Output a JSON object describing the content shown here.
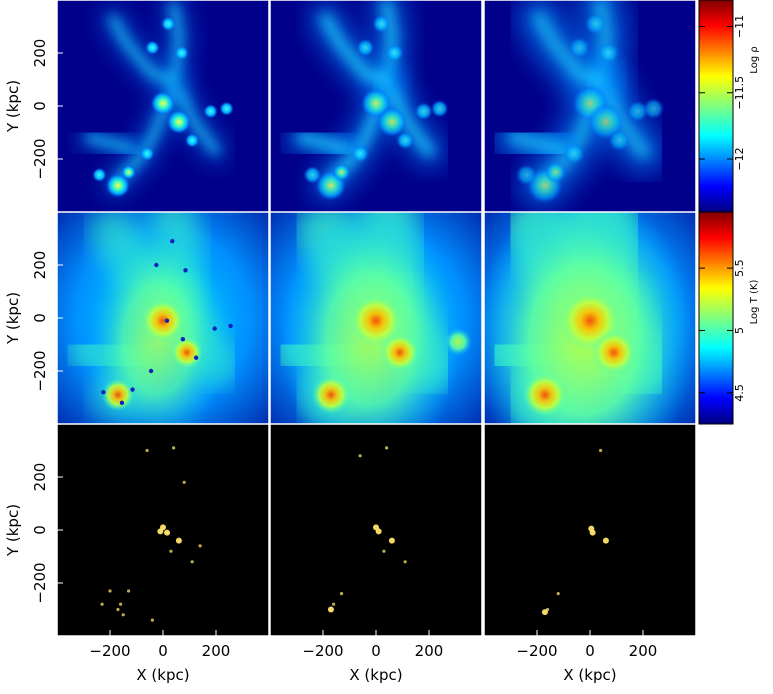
{
  "chart_data": {
    "type": "heatmap",
    "layout": "3 rows x 3 columns of map panels with shared axes",
    "x_axis": {
      "label": "X (kpc)",
      "range": [
        -400,
        400
      ],
      "ticks": [
        -200,
        0,
        200
      ],
      "tick_labels": [
        "−200",
        "0",
        "200"
      ]
    },
    "y_axis": {
      "label": "Y (kpc)",
      "range": [
        -400,
        400
      ],
      "ticks": [
        -200,
        0,
        200
      ],
      "tick_labels": [
        "−200",
        "0",
        "200"
      ]
    },
    "colorbars": [
      {
        "label": "Log ρ",
        "colormap": "jet",
        "range": [
          -12.4,
          -10.8
        ],
        "ticks": [
          -11,
          -11.5,
          -12
        ],
        "tick_labels": [
          "−11",
          "−11.5",
          "−12"
        ]
      },
      {
        "label": "Log T (K)",
        "colormap": "jet",
        "range": [
          4.25,
          5.95
        ],
        "ticks": [
          5.5,
          5,
          4.5
        ],
        "tick_labels": [
          "5.5",
          "5",
          "4.5"
        ]
      }
    ],
    "rows": [
      {
        "quantity": "density",
        "colormap": "jet",
        "background": "#00008a"
      },
      {
        "quantity": "temperature",
        "colormap": "jet",
        "background": "#0033b5"
      },
      {
        "quantity": "sparse bright points",
        "colormap": "black-yellow",
        "background": "#000000"
      }
    ],
    "columns": 3
  },
  "colors": {
    "frame": "#ffffff",
    "text": "#000000",
    "point_yellow": "#ffe56a"
  }
}
